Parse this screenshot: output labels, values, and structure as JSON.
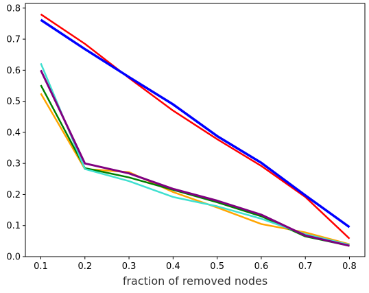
{
  "chart_data": {
    "type": "line",
    "title": "",
    "xlabel": "fraction of removed nodes",
    "ylabel": "",
    "xlim": [
      0.065,
      0.835
    ],
    "ylim": [
      0.0,
      0.815
    ],
    "grid": false,
    "legend": "none",
    "x": [
      0.1,
      0.2,
      0.3,
      0.4,
      0.5,
      0.6,
      0.7,
      0.8
    ],
    "xticks": [
      0.1,
      0.2,
      0.3,
      0.4,
      0.5,
      0.6,
      0.7,
      0.8
    ],
    "xtick_labels": [
      "0.1",
      "0.2",
      "0.3",
      "0.4",
      "0.5",
      "0.6",
      "0.7",
      "0.8"
    ],
    "yticks": [
      0.0,
      0.1,
      0.2,
      0.3,
      0.4,
      0.5,
      0.6,
      0.7,
      0.8
    ],
    "ytick_labels": [
      "0.0",
      "0.1",
      "0.2",
      "0.3",
      "0.4",
      "0.5",
      "0.6",
      "0.7",
      "0.8"
    ],
    "series": [
      {
        "color": "#ff0000",
        "width": 2.5,
        "values": [
          0.78,
          0.685,
          0.575,
          0.47,
          0.378,
          0.292,
          0.192,
          0.058
        ]
      },
      {
        "color": "#0000ff",
        "width": 3.5,
        "values": [
          0.762,
          0.668,
          0.578,
          0.49,
          0.388,
          0.302,
          0.197,
          0.095
        ]
      },
      {
        "color": "#ffa500",
        "width": 2.5,
        "values": [
          0.525,
          0.282,
          0.272,
          0.208,
          0.158,
          0.105,
          0.078,
          0.04
        ]
      },
      {
        "color": "#008000",
        "width": 2.5,
        "values": [
          0.552,
          0.285,
          0.255,
          0.215,
          0.175,
          0.13,
          0.065,
          0.035
        ]
      },
      {
        "color": "#40e0d0",
        "width": 2.5,
        "values": [
          0.622,
          0.282,
          0.243,
          0.192,
          0.162,
          0.122,
          0.072,
          0.038
        ]
      },
      {
        "color": "#800080",
        "width": 3.0,
        "values": [
          0.6,
          0.3,
          0.268,
          0.218,
          0.18,
          0.135,
          0.068,
          0.035
        ]
      }
    ]
  }
}
